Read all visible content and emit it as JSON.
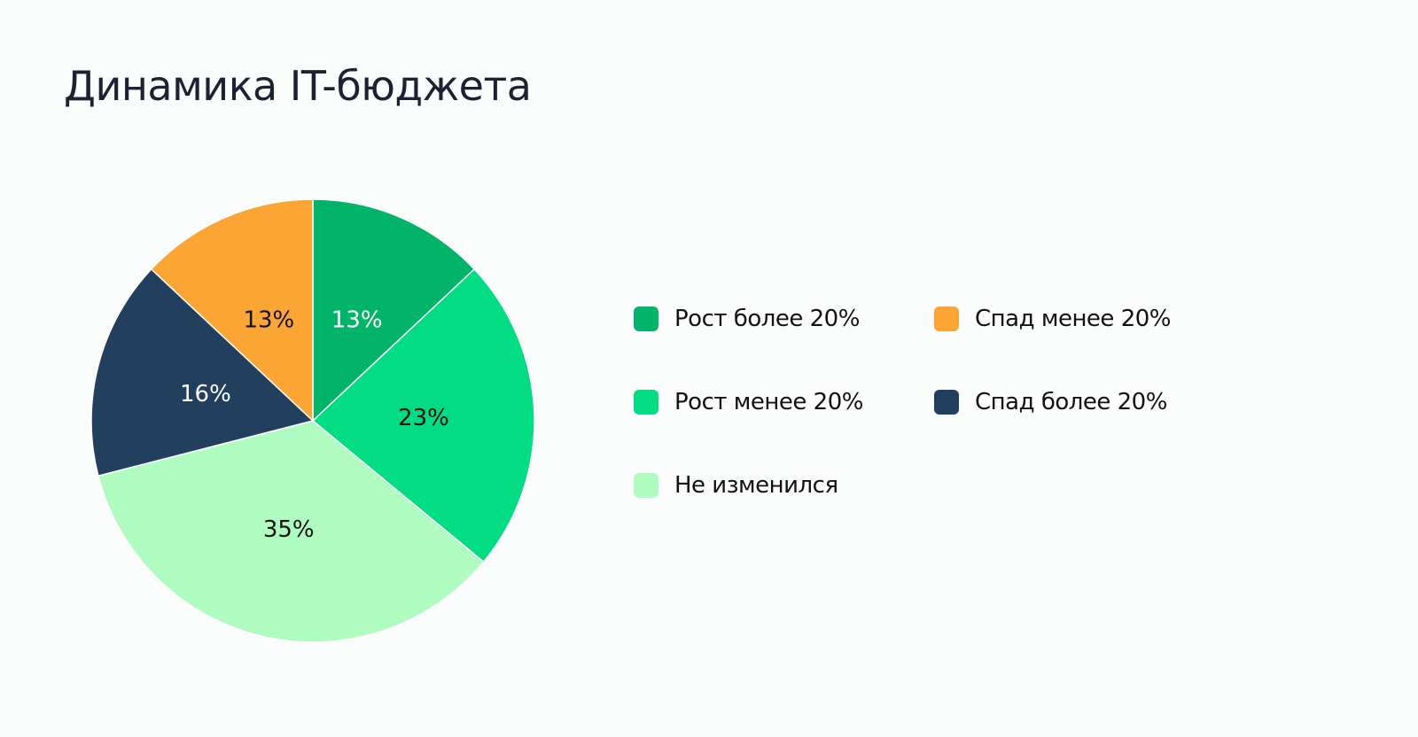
{
  "chart_data": {
    "type": "pie",
    "title": "Динамика IT-бюджета",
    "slices": [
      {
        "name": "Рост более 20%",
        "value": 13,
        "label": "13%",
        "color": "#02b46a",
        "label_color": "#ffffff"
      },
      {
        "name": "Рост менее 20%",
        "value": 23,
        "label": "23%",
        "color": "#02dc82",
        "label_color": "#111111"
      },
      {
        "name": "Не изменился",
        "value": 35,
        "label": "35%",
        "color": "#b0fcc0",
        "label_color": "#111111"
      },
      {
        "name": "Спад более 20%",
        "value": 16,
        "label": "16%",
        "color": "#223f5e",
        "label_color": "#ffffff"
      },
      {
        "name": "Спад менее 20%",
        "value": 13,
        "label": "13%",
        "color": "#fba535",
        "label_color": "#111111"
      }
    ],
    "legend": {
      "placement": "right",
      "items": [
        {
          "label": "Рост более 20%",
          "color": "#02b46a"
        },
        {
          "label": "Спад менее 20%",
          "color": "#fba535"
        },
        {
          "label": "Рост менее 20%",
          "color": "#02dc82"
        },
        {
          "label": "Спад более 20%",
          "color": "#223f5e"
        },
        {
          "label": "Не изменился",
          "color": "#b0fcc0"
        }
      ]
    }
  }
}
